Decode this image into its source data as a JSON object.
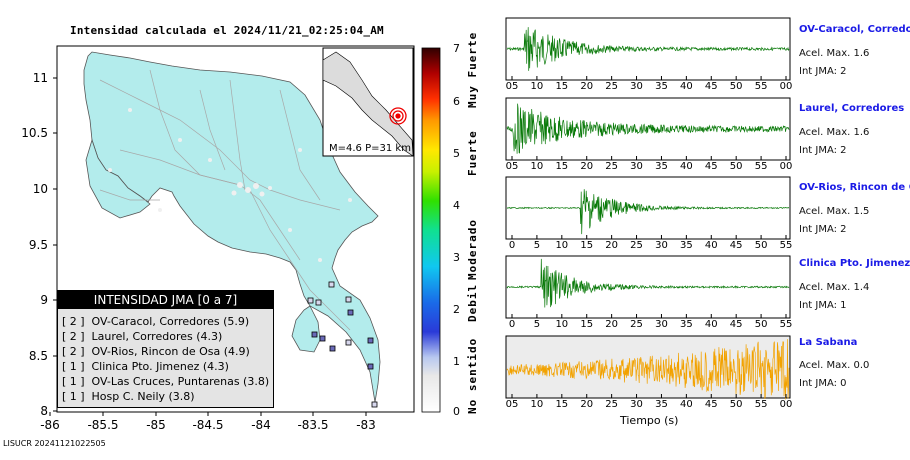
{
  "title": "Intensidad calculada el 2024/11/21_02:25:04_AM",
  "map": {
    "lat_ticks": [
      "11",
      "10.5",
      "10",
      "9.5",
      "9",
      "8.5",
      "8"
    ],
    "lon_ticks": [
      "-86",
      "-85.5",
      "-85",
      "-84.5",
      "-84",
      "-83.5",
      "-83"
    ],
    "inset_label": "M=4.6 P=31 km"
  },
  "legend": {
    "header": "INTENSIDAD JMA [0 a 7]",
    "items": [
      {
        "level": "[ 2 ]",
        "text": "OV-Caracol, Corredores (5.9)"
      },
      {
        "level": "[ 2 ]",
        "text": "Laurel, Corredores (4.3)"
      },
      {
        "level": "[ 2 ]",
        "text": "OV-Rios, Rincon de Osa (4.9)"
      },
      {
        "level": "[ 1 ]",
        "text": "Clinica Pto. Jimenez (4.3)"
      },
      {
        "level": "[ 1 ]",
        "text": "OV-Las Cruces, Puntarenas (3.8)"
      },
      {
        "level": "[ 1 ]",
        "text": "Hosp C. Neily (3.8)"
      }
    ]
  },
  "colorscale": {
    "labels": [
      "7",
      "6",
      "5",
      "4",
      "3",
      "2",
      "1",
      "0"
    ],
    "bands": [
      "Muy Fuerte",
      "Fuerte",
      "Moderado",
      "Debil",
      "No sentido"
    ]
  },
  "colors": {
    "land": "#b3ecec",
    "wave_green": "#0a7a0a",
    "wave_orange": "#f2a200",
    "station_name": "#1a1ae6"
  },
  "waveforms": {
    "xlabel": "Tiempo (s)",
    "stations": [
      {
        "name": "OV-Caracol, Corredore",
        "accel": "Acel. Max. 1.6",
        "jma": "Int JMA: 2",
        "color": "green",
        "ticks": [
          "05",
          "10",
          "15",
          "20",
          "25",
          "30",
          "35",
          "40",
          "45",
          "50",
          "55",
          "00"
        ]
      },
      {
        "name": "Laurel, Corredores",
        "accel": "Acel. Max. 1.6",
        "jma": "Int JMA: 2",
        "color": "green",
        "ticks": [
          "05",
          "10",
          "15",
          "20",
          "25",
          "30",
          "35",
          "40",
          "45",
          "50",
          "55",
          "00"
        ]
      },
      {
        "name": "OV-Rios, Rincon de Os",
        "accel": "Acel. Max. 1.5",
        "jma": "Int JMA: 2",
        "color": "green",
        "ticks": [
          "0",
          "5",
          "10",
          "15",
          "20",
          "25",
          "30",
          "35",
          "40",
          "45",
          "50",
          "55"
        ]
      },
      {
        "name": "Clinica Pto. Jimenez",
        "accel": "Acel. Max. 1.4",
        "jma": "Int JMA: 1",
        "color": "green",
        "ticks": [
          "0",
          "5",
          "10",
          "15",
          "20",
          "25",
          "30",
          "35",
          "40",
          "45",
          "50",
          "55"
        ]
      },
      {
        "name": "La Sabana",
        "accel": "Acel. Max. 0.0",
        "jma": "Int JMA: 0",
        "color": "orange",
        "ticks": [
          "05",
          "10",
          "15",
          "20",
          "25",
          "30",
          "35",
          "40",
          "45",
          "50",
          "55",
          "00"
        ]
      }
    ]
  },
  "footer": "LISUCR 20241121022505",
  "chart_data": {
    "type": "map",
    "title": "Intensidad calculada el 2024/11/21_02:25:04_AM",
    "xlim": [
      -86,
      -82.5
    ],
    "ylim": [
      8,
      11.3
    ],
    "epicenter": {
      "lon": -82.85,
      "lat": 8.6,
      "magnitude": 4.6,
      "depth_km": 31
    },
    "stations_intensity": [
      {
        "name": "OV-Caracol, Corredores",
        "jma": 2,
        "pga": 5.9
      },
      {
        "name": "Laurel, Corredores",
        "jma": 2,
        "pga": 4.3
      },
      {
        "name": "OV-Rios, Rincon de Osa",
        "jma": 2,
        "pga": 4.9
      },
      {
        "name": "Clinica Pto. Jimenez",
        "jma": 1,
        "pga": 4.3
      },
      {
        "name": "OV-Las Cruces, Puntarenas",
        "jma": 1,
        "pga": 3.8
      },
      {
        "name": "Hosp C. Neily",
        "jma": 1,
        "pga": 3.8
      }
    ]
  }
}
